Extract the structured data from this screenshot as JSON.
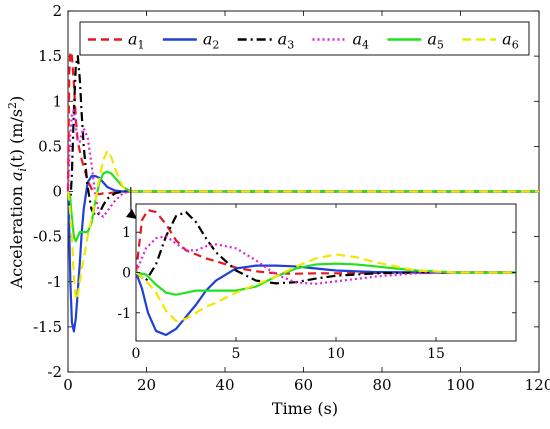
{
  "chart_data": {
    "type": "line",
    "xlabel": "Time (s)",
    "ylabel": "Acceleration a_i(t) (m/s²)",
    "ylabel_parts": {
      "prefix": "Acceleration ",
      "var": "a",
      "sub": "i",
      "arg": "(t) (m/s",
      "sup": "2",
      "suffix": ")"
    },
    "xlim": [
      0,
      120
    ],
    "ylim": [
      -2,
      2
    ],
    "xticks": [
      "0",
      "20",
      "40",
      "60",
      "80",
      "100",
      "120"
    ],
    "yticks": [
      "-2",
      "-1.5",
      "-1",
      "-0.5",
      "0",
      "0.5",
      "1",
      "1.5",
      "2"
    ],
    "legend_position": "top",
    "grid": false,
    "series": [
      {
        "name": "a1",
        "label_main": "a",
        "label_sub": "1",
        "color": "#e41a1c",
        "dash": "8,5",
        "x": [
          0,
          0.3,
          0.6,
          1.0,
          1.5,
          2.0,
          2.5,
          3.0,
          3.5,
          4.0,
          5.0,
          6.0,
          7.0,
          8.0,
          9.0,
          10.0,
          12.0,
          14.0,
          16.0,
          18.0,
          20.0,
          120.0
        ],
        "y": [
          0,
          1.3,
          1.55,
          1.5,
          1.2,
          0.8,
          0.55,
          0.45,
          0.35,
          0.28,
          0.12,
          0.03,
          -0.02,
          -0.03,
          -0.02,
          -0.02,
          -0.01,
          0,
          0,
          0,
          0,
          0
        ]
      },
      {
        "name": "a2",
        "label_main": "a",
        "label_sub": "2",
        "color": "#1f3fd9",
        "dash": "",
        "x": [
          0,
          0.3,
          0.6,
          1.0,
          1.5,
          2.0,
          2.5,
          3.0,
          3.5,
          4.0,
          5.0,
          6.0,
          7.0,
          8.0,
          9.0,
          10.0,
          12.0,
          14.0,
          16.0,
          18.0,
          20.0,
          120.0
        ],
        "y": [
          0,
          -0.4,
          -1.0,
          -1.45,
          -1.55,
          -1.4,
          -1.1,
          -0.8,
          -0.45,
          -0.2,
          0.1,
          0.17,
          0.17,
          0.15,
          0.1,
          0.05,
          0.01,
          0,
          0,
          0,
          0,
          0
        ]
      },
      {
        "name": "a3",
        "label_main": "a",
        "label_sub": "3",
        "color": "#000000",
        "dash": "9,4,2,4",
        "x": [
          0,
          0.5,
          1.0,
          1.5,
          2.0,
          2.5,
          3.0,
          3.5,
          4.0,
          5.0,
          6.0,
          7.0,
          8.0,
          9.0,
          10.0,
          12.0,
          14.0,
          16.0,
          18.0,
          20.0,
          120.0
        ],
        "y": [
          0,
          -0.2,
          0.2,
          0.9,
          1.4,
          1.5,
          1.25,
          0.85,
          0.5,
          0.05,
          -0.2,
          -0.27,
          -0.24,
          -0.15,
          -0.08,
          -0.02,
          0,
          0,
          0,
          0,
          0
        ]
      },
      {
        "name": "a4",
        "label_main": "a",
        "label_sub": "4",
        "color": "#e020e0",
        "dash": "2,3",
        "x": [
          0,
          0.5,
          1.0,
          1.5,
          2.0,
          2.5,
          3.0,
          3.5,
          4.0,
          5.0,
          6.0,
          7.0,
          8.0,
          9.0,
          10.0,
          12.0,
          14.0,
          16.0,
          18.0,
          20.0,
          120.0
        ],
        "y": [
          0,
          0.6,
          0.85,
          0.9,
          0.72,
          0.55,
          0.55,
          0.65,
          0.7,
          0.6,
          0.3,
          -0.05,
          -0.25,
          -0.28,
          -0.22,
          -0.1,
          -0.02,
          0,
          0,
          0,
          0
        ]
      },
      {
        "name": "a5",
        "label_main": "a",
        "label_sub": "5",
        "color": "#22e022",
        "dash": "",
        "x": [
          0,
          0.5,
          1.0,
          1.5,
          2.0,
          2.5,
          3.0,
          4.0,
          5.0,
          6.0,
          7.0,
          8.0,
          9.0,
          10.0,
          11.0,
          12.0,
          14.0,
          16.0,
          18.0,
          20.0,
          120.0
        ],
        "y": [
          0,
          -0.05,
          -0.3,
          -0.5,
          -0.55,
          -0.5,
          -0.45,
          -0.45,
          -0.45,
          -0.35,
          -0.1,
          0.1,
          0.2,
          0.22,
          0.2,
          0.15,
          0.05,
          0,
          0,
          0,
          0
        ]
      },
      {
        "name": "a6",
        "label_main": "a",
        "label_sub": "6",
        "color": "#f2e600",
        "dash": "9,5",
        "x": [
          0,
          0.5,
          1.0,
          1.5,
          2.0,
          2.5,
          3.0,
          3.5,
          4.0,
          5.0,
          6.0,
          7.0,
          8.0,
          9.0,
          10.0,
          11.0,
          12.0,
          14.0,
          16.0,
          18.0,
          20.0,
          120.0
        ],
        "y": [
          0,
          -0.2,
          -0.5,
          -0.95,
          -1.2,
          -1.15,
          -1.0,
          -0.85,
          -0.75,
          -0.5,
          -0.3,
          -0.1,
          0.15,
          0.35,
          0.45,
          0.38,
          0.25,
          0.05,
          0,
          0,
          0,
          0
        ]
      }
    ],
    "inset": {
      "xlim": [
        0,
        19
      ],
      "ylim": [
        -1.7,
        1.7
      ],
      "xticks": [
        "0",
        "5",
        "10",
        "15"
      ],
      "yticks": [
        "-1",
        "0",
        "1"
      ]
    }
  }
}
